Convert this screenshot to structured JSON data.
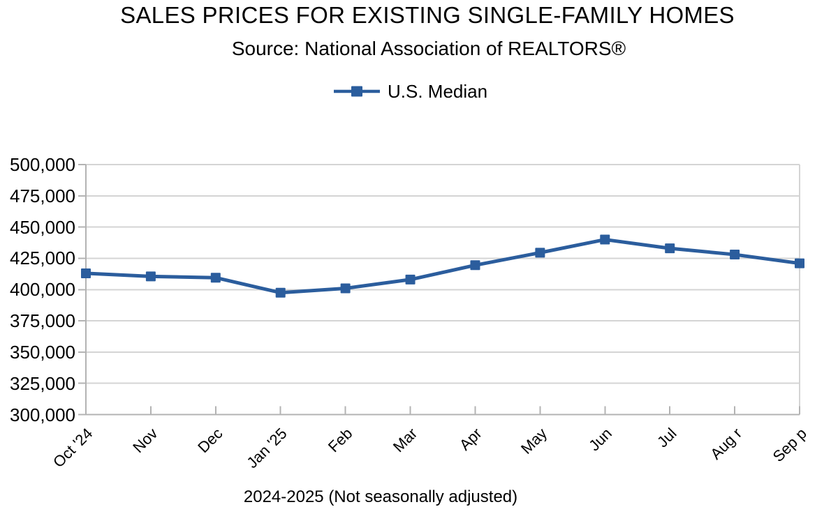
{
  "page": {
    "background": "#ffffff"
  },
  "header": {
    "title": "SALES PRICES FOR EXISTING SINGLE-FAMILY HOMES",
    "subtitle": "Source: National Association of REALTORS®"
  },
  "legend": {
    "series_label": "U.S. Median",
    "marker_color": "#2B5D9D"
  },
  "axis": {
    "x_axis_title": "2024-2025 (Not seasonally adjusted)"
  },
  "chart_data": {
    "type": "line",
    "title": "SALES PRICES FOR EXISTING SINGLE-FAMILY HOMES",
    "subtitle": "Source: National Association of REALTORS®",
    "xlabel": "2024-2025 (Not seasonally adjusted)",
    "ylabel": "",
    "categories": [
      "Oct '24",
      "Nov",
      "Dec",
      "Jan '25",
      "Feb",
      "Mar",
      "Apr",
      "May",
      "Jun",
      "Jul",
      "Aug r",
      "Sep p"
    ],
    "series": [
      {
        "name": "U.S. Median",
        "color": "#2B5D9D",
        "values": [
          413000,
          410500,
          409500,
          397500,
          401000,
          408000,
          419500,
          429500,
          440000,
          433000,
          428000,
          421000
        ]
      }
    ],
    "ylim": [
      300000,
      500000
    ],
    "ytick_step": 25000,
    "ytick_values": [
      500000,
      475000,
      450000,
      425000,
      400000,
      375000,
      350000,
      325000,
      300000
    ],
    "ytick_labels": [
      "500,000",
      "475,000",
      "450,000",
      "425,000",
      "400,000",
      "375,000",
      "350,000",
      "325,000",
      "300,000"
    ],
    "grid": "horizontal",
    "legend_position": "top-center",
    "grid_color": "#d4d4d4",
    "axis_color": "#b3b3b3",
    "text_color": "#000000"
  }
}
